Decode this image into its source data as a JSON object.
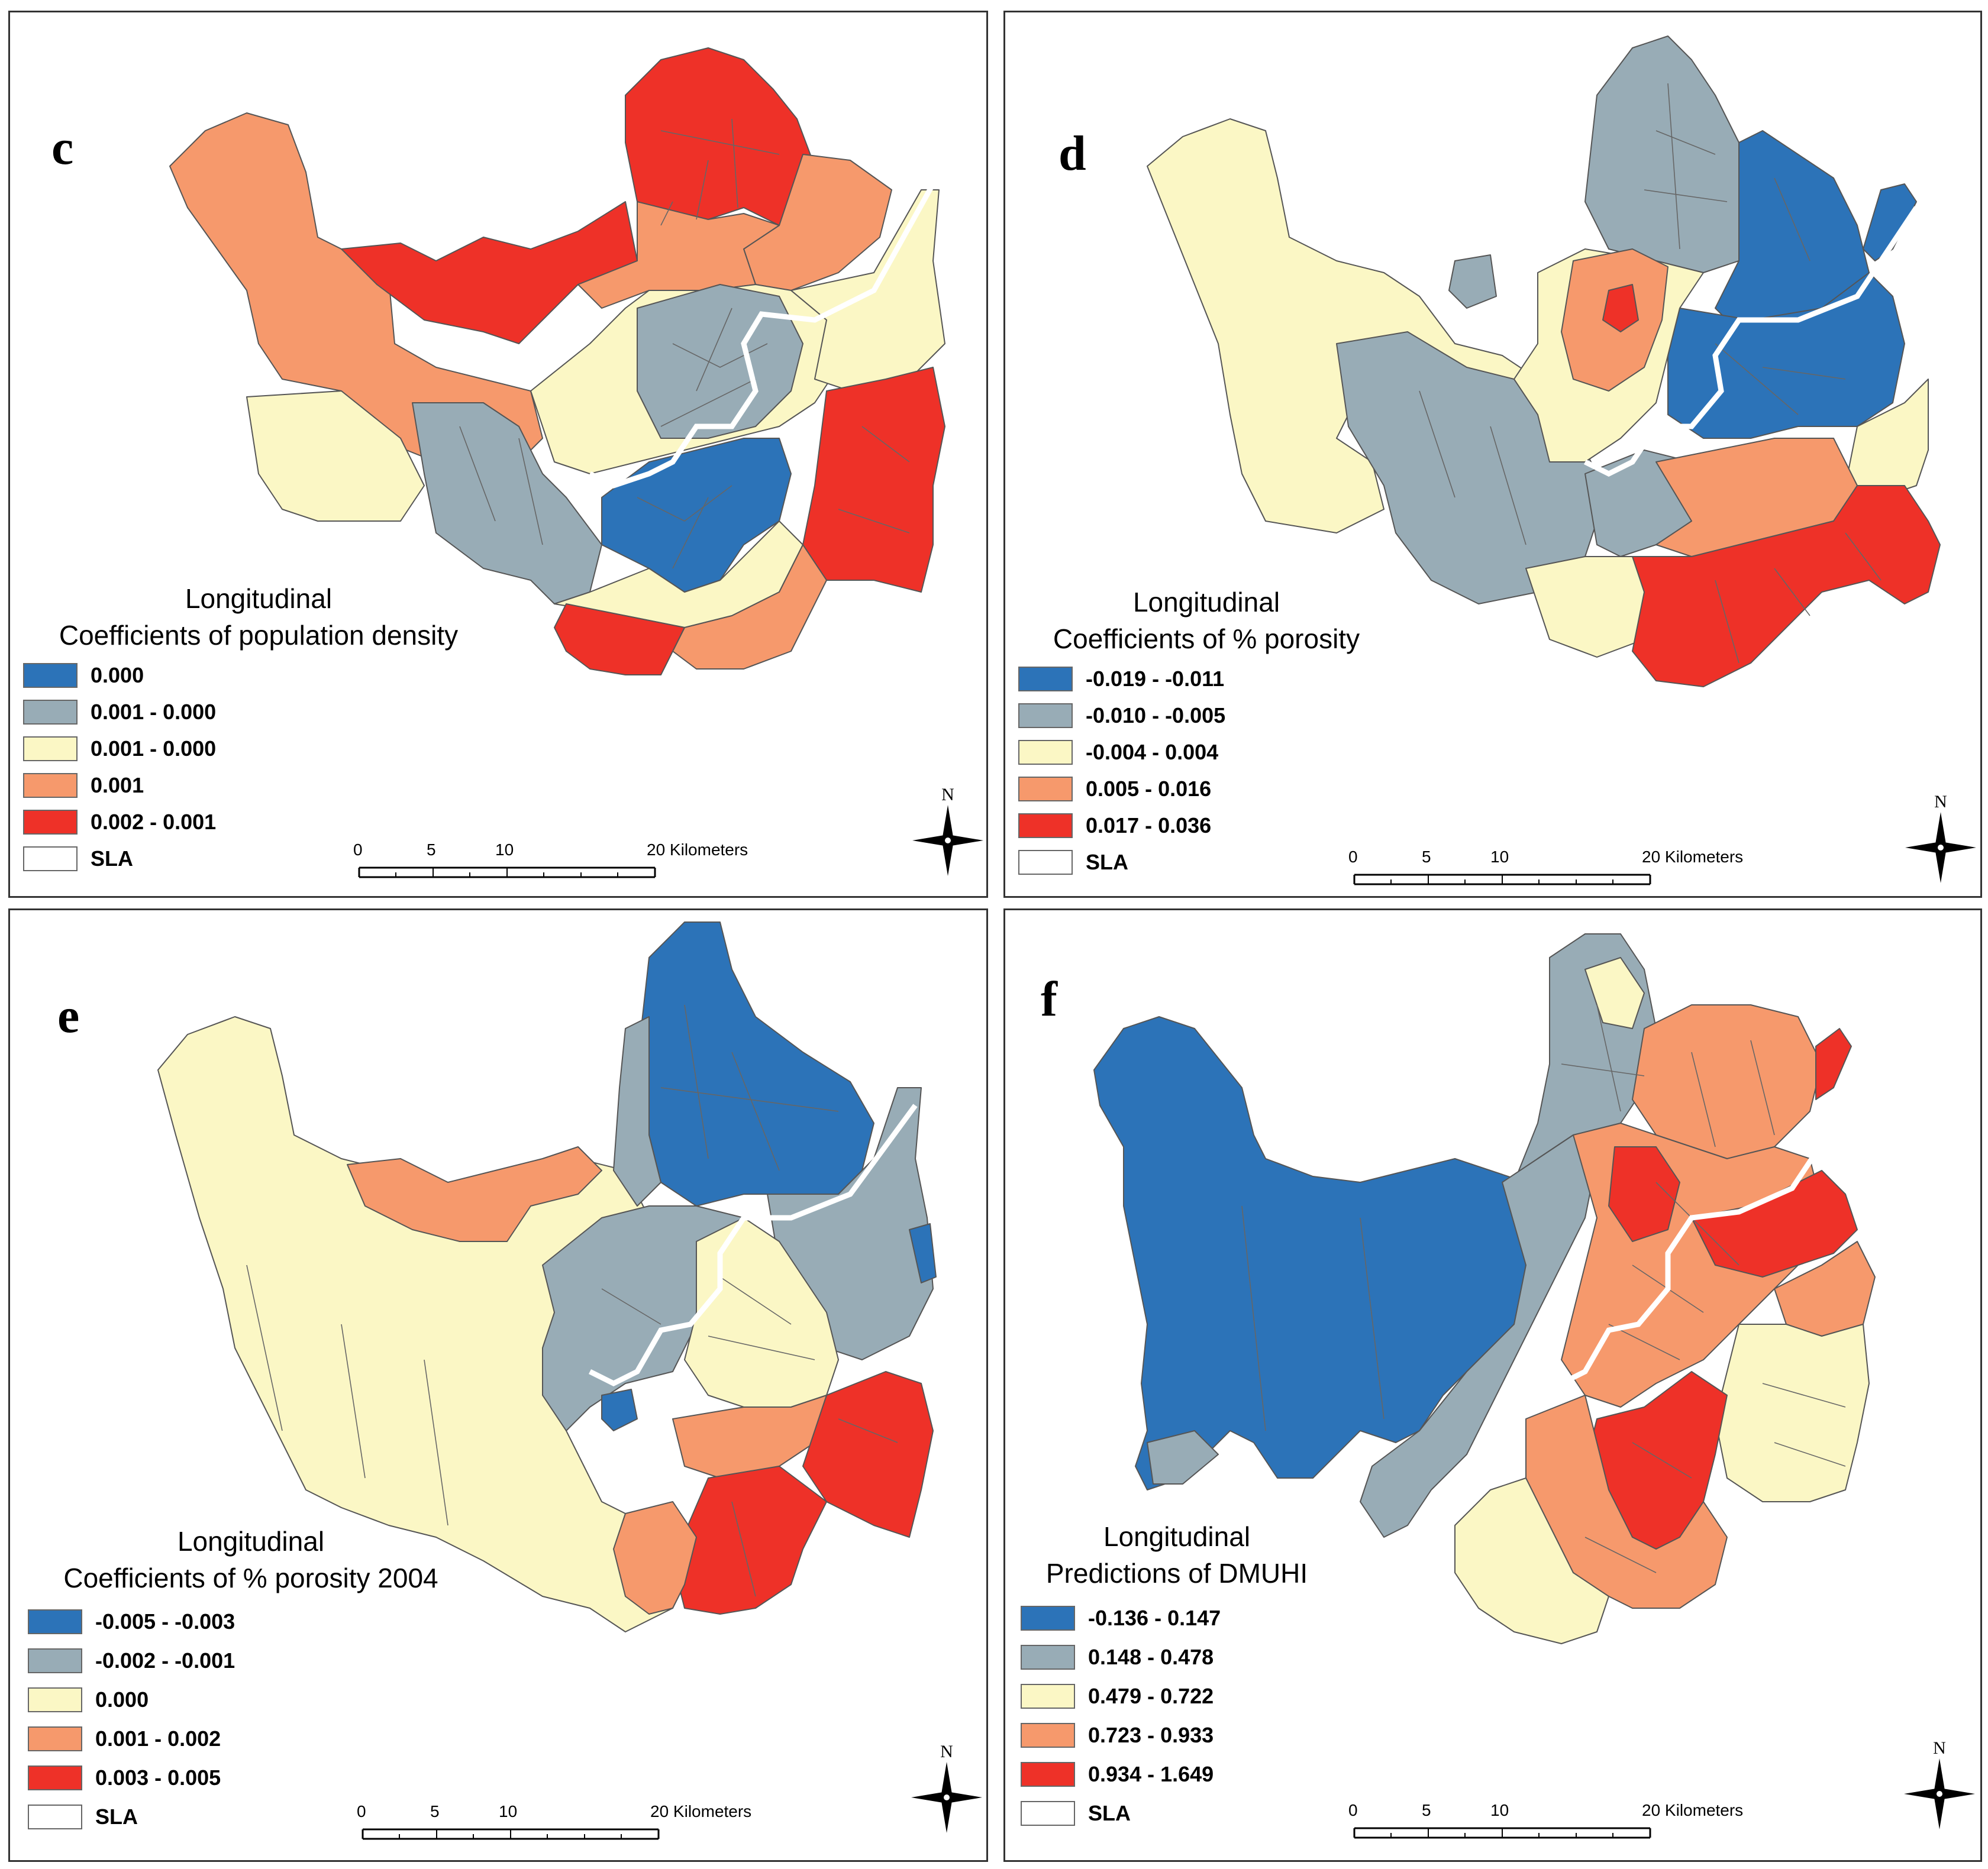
{
  "colors": {
    "class1": "#2c73b8",
    "class2": "#98acb6",
    "class3": "#fbf7c5",
    "class4": "#f6996c",
    "class5": "#ee3128",
    "sla": "#ffffff",
    "boundary": "#555555",
    "river": "#ffffff"
  },
  "scale_bar": {
    "ticks": [
      "0",
      "5",
      "10"
    ],
    "end_label": "20 Kilometers"
  },
  "north_label": "N",
  "panels": [
    {
      "letter": "c",
      "title_line1": "Longitudinal",
      "title_line2": "Coefficients of population density",
      "legend": [
        {
          "label": "0.000",
          "color": "#2c73b8"
        },
        {
          "label": "0.001 - 0.000",
          "color": "#98acb6"
        },
        {
          "label": "0.001 - 0.000",
          "color": "#fbf7c5"
        },
        {
          "label": "0.001",
          "color": "#f6996c"
        },
        {
          "label": "0.002 - 0.001",
          "color": "#ee3128"
        },
        {
          "label": "SLA",
          "color": "#ffffff"
        }
      ]
    },
    {
      "letter": "d",
      "title_line1": "Longitudinal",
      "title_line2": "Coefficients of % porosity",
      "legend": [
        {
          "label": "-0.019 - -0.011",
          "color": "#2c73b8"
        },
        {
          "label": "-0.010 - -0.005",
          "color": "#98acb6"
        },
        {
          "label": "-0.004 - 0.004",
          "color": "#fbf7c5"
        },
        {
          "label": "0.005 - 0.016",
          "color": "#f6996c"
        },
        {
          "label": "0.017 - 0.036",
          "color": "#ee3128"
        },
        {
          "label": "SLA",
          "color": "#ffffff"
        }
      ]
    },
    {
      "letter": "e",
      "title_line1": "Longitudinal",
      "title_line2": "Coefficients of % porosity 2004",
      "legend": [
        {
          "label": "-0.005 - -0.003",
          "color": "#2c73b8"
        },
        {
          "label": "-0.002 - -0.001",
          "color": "#98acb6"
        },
        {
          "label": "0.000",
          "color": "#fbf7c5"
        },
        {
          "label": "0.001 - 0.002",
          "color": "#f6996c"
        },
        {
          "label": "0.003 - 0.005",
          "color": "#ee3128"
        },
        {
          "label": "SLA",
          "color": "#ffffff"
        }
      ]
    },
    {
      "letter": "f",
      "title_line1": "Longitudinal",
      "title_line2": "Predictions of DMUHI",
      "legend": [
        {
          "label": "-0.136 - 0.147",
          "color": "#2c73b8"
        },
        {
          "label": "0.148 - 0.478",
          "color": "#98acb6"
        },
        {
          "label": "0.479 - 0.722",
          "color": "#fbf7c5"
        },
        {
          "label": "0.723 - 0.933",
          "color": "#f6996c"
        },
        {
          "label": "0.934 - 1.649",
          "color": "#ee3128"
        },
        {
          "label": "SLA",
          "color": "#ffffff"
        }
      ]
    }
  ]
}
